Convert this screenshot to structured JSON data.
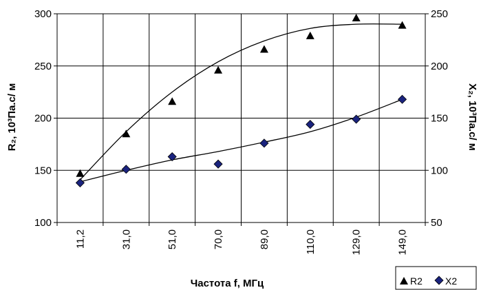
{
  "chart_data": {
    "type": "scatter",
    "categories": [
      "11,2",
      "31,0",
      "51,0",
      "70,0",
      "89,0",
      "110,0",
      "129,0",
      "149,0"
    ],
    "xlabel": "Частота f, МГц",
    "ylabel": "R₂, 10³Па.с/ м",
    "y2label": "X₂, 10³Па.с/ м",
    "ylim": [
      100,
      300
    ],
    "y2lim": [
      50,
      250
    ],
    "yticks": [
      "100",
      "150",
      "200",
      "250",
      "300"
    ],
    "y2ticks": [
      "50",
      "100",
      "150",
      "200",
      "250"
    ],
    "grid": true,
    "legend_position": "bottom-right",
    "series": [
      {
        "name": "R2",
        "axis": "left",
        "marker": "triangle",
        "color": "#000000",
        "values": [
          147,
          185,
          216,
          246,
          266,
          279,
          296,
          289
        ],
        "trend": [
          141,
          187,
          225,
          254,
          274,
          286,
          290,
          290
        ]
      },
      {
        "name": "X2",
        "axis": "right",
        "marker": "diamond",
        "color": "#1a237e",
        "values": [
          88,
          101,
          113,
          106,
          126,
          144,
          149,
          168
        ],
        "trend": [
          89,
          100,
          110,
          118,
          127,
          137,
          151,
          168
        ]
      }
    ]
  }
}
